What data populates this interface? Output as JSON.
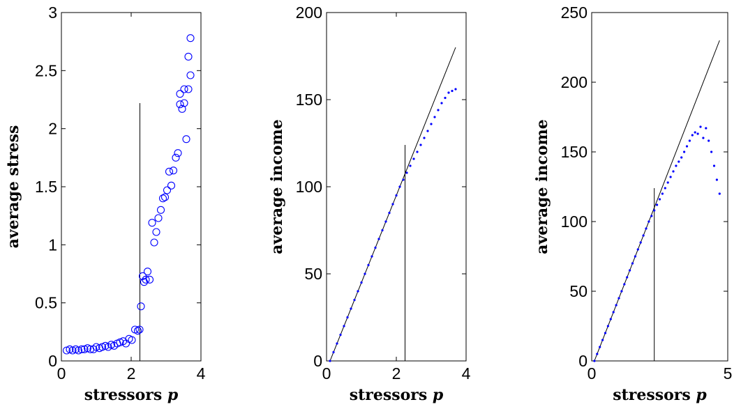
{
  "chart_data": [
    {
      "type": "scatter",
      "xlabel": "stressors p",
      "ylabel": "average stress",
      "xlim": [
        0,
        4
      ],
      "ylim": [
        0,
        3
      ],
      "xticks": [
        "0",
        "2",
        "4"
      ],
      "yticks": [
        "0",
        "0.5",
        "1",
        "1.5",
        "2",
        "2.5",
        "3"
      ],
      "marker": "circle-open",
      "color": "#0000ff",
      "x": [
        0.15,
        0.24,
        0.32,
        0.41,
        0.49,
        0.58,
        0.66,
        0.75,
        0.83,
        0.92,
        1.0,
        1.09,
        1.17,
        1.26,
        1.34,
        1.43,
        1.51,
        1.6,
        1.68,
        1.77,
        1.85,
        1.94,
        2.02,
        2.11,
        2.19,
        2.24,
        2.28,
        2.33,
        2.37,
        2.42,
        2.47,
        2.53,
        2.6,
        2.66,
        2.72,
        2.78,
        2.85,
        2.91,
        2.97,
        3.03,
        3.09,
        3.15,
        3.21,
        3.28,
        3.34,
        3.4,
        3.46,
        3.52,
        3.58,
        3.64,
        3.7
      ],
      "y": [
        0.09,
        0.1,
        0.09,
        0.1,
        0.09,
        0.1,
        0.1,
        0.11,
        0.1,
        0.1,
        0.12,
        0.11,
        0.12,
        0.13,
        0.12,
        0.14,
        0.13,
        0.15,
        0.16,
        0.17,
        0.15,
        0.19,
        0.18,
        0.27,
        0.26,
        0.27,
        0.47,
        0.73,
        0.68,
        0.7,
        0.77,
        0.7,
        1.19,
        1.02,
        1.11,
        1.23,
        1.3,
        1.4,
        1.41,
        1.47,
        1.63,
        1.51,
        1.64,
        1.75,
        1.79,
        2.3,
        2.17,
        2.22,
        1.91,
        2.34,
        2.46
      ],
      "x_extra": [
        3.4,
        3.52,
        3.64,
        3.7
      ],
      "y_extra": [
        2.21,
        2.34,
        2.62,
        2.78
      ],
      "vline_x": 2.25,
      "vline_ymax": 2.22
    },
    {
      "type": "line",
      "xlabel": "stressors p",
      "ylabel": "average income",
      "xlim": [
        0,
        4
      ],
      "ylim": [
        0,
        200
      ],
      "xticks": [
        "0",
        "2",
        "4"
      ],
      "yticks": [
        "0",
        "50",
        "100",
        "150",
        "200"
      ],
      "reference_line": {
        "x": [
          0.1,
          3.7
        ],
        "y": [
          0,
          180
        ]
      },
      "color": "#0000ff",
      "x": [
        0.1,
        0.2,
        0.3,
        0.4,
        0.5,
        0.6,
        0.7,
        0.8,
        0.9,
        1.0,
        1.1,
        1.2,
        1.3,
        1.4,
        1.5,
        1.6,
        1.7,
        1.8,
        1.9,
        2.0,
        2.1,
        2.2,
        2.3,
        2.4,
        2.5,
        2.6,
        2.7,
        2.8,
        2.9,
        3.0,
        3.1,
        3.2,
        3.3,
        3.4,
        3.5,
        3.6,
        3.7
      ],
      "y": [
        0,
        5,
        10,
        15,
        20,
        25,
        30,
        35,
        40,
        45,
        50,
        55,
        60,
        65,
        70,
        75,
        80,
        85,
        90,
        95,
        100,
        104,
        108,
        112,
        116,
        120,
        124,
        128,
        132,
        136,
        140,
        144,
        148,
        151,
        154,
        155,
        156
      ],
      "vline_x": 2.25,
      "vline_ymax": 124
    },
    {
      "type": "line",
      "xlabel": "stressors p",
      "ylabel": "average income",
      "xlim": [
        0,
        5
      ],
      "ylim": [
        0,
        250
      ],
      "xticks": [
        "0",
        "5"
      ],
      "yticks": [
        "0",
        "50",
        "100",
        "150",
        "200",
        "250"
      ],
      "reference_line": {
        "x": [
          0.1,
          4.7
        ],
        "y": [
          0,
          230
        ]
      },
      "color": "#0000ff",
      "x": [
        0.1,
        0.2,
        0.3,
        0.4,
        0.5,
        0.6,
        0.7,
        0.8,
        0.9,
        1.0,
        1.1,
        1.2,
        1.3,
        1.4,
        1.5,
        1.6,
        1.7,
        1.8,
        1.9,
        2.0,
        2.1,
        2.2,
        2.3,
        2.4,
        2.5,
        2.6,
        2.7,
        2.8,
        2.9,
        3.0,
        3.1,
        3.2,
        3.3,
        3.4,
        3.5,
        3.6,
        3.7,
        3.8,
        3.9,
        4.0,
        4.1,
        4.2,
        4.3,
        4.4,
        4.5,
        4.6,
        4.7
      ],
      "y": [
        0,
        5,
        10,
        15,
        20,
        25,
        30,
        35,
        40,
        45,
        50,
        55,
        60,
        65,
        70,
        75,
        80,
        85,
        90,
        95,
        100,
        104,
        108,
        112,
        116,
        120,
        124,
        128,
        132,
        136,
        140,
        143,
        146,
        150,
        154,
        158,
        162,
        164,
        163,
        168,
        160,
        167,
        158,
        150,
        140,
        130,
        120
      ],
      "vline_x": 2.3,
      "vline_ymax": 124
    }
  ]
}
